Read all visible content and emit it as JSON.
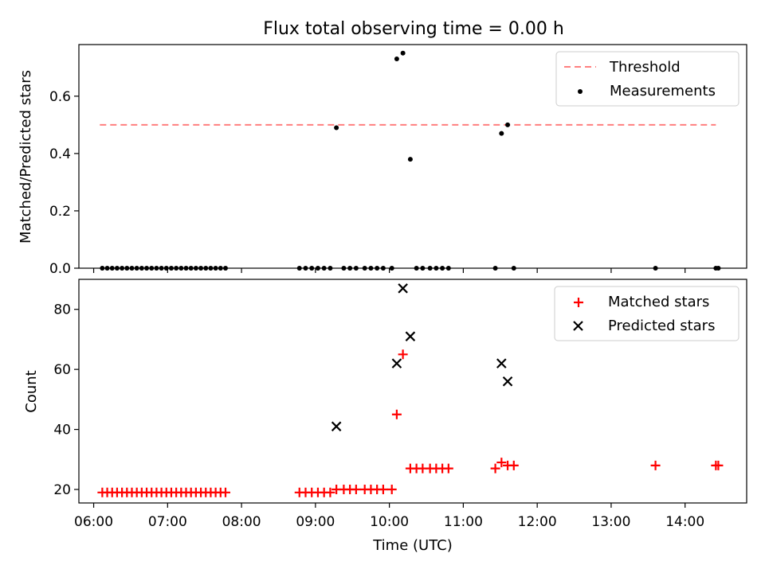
{
  "title": "Flux total observing time = 0.00 h",
  "chart_data": [
    {
      "type": "scatter",
      "panel": "top",
      "ylabel": "Matched/Predicted stars",
      "ylim": [
        0,
        0.78
      ],
      "yticks": [
        0.0,
        0.2,
        0.4,
        0.6
      ],
      "ytick_labels": [
        "0.0",
        "0.2",
        "0.4",
        "0.6"
      ],
      "threshold": {
        "name": "Threshold",
        "value": 0.5,
        "x_start": "06:05",
        "x_end": "14:25",
        "color": "#ff7f7f",
        "style": "dashed"
      },
      "series": [
        {
          "name": "Measurements",
          "color": "#000000",
          "marker": "dot",
          "x": [
            "06:07",
            "06:11",
            "06:15",
            "06:19",
            "06:23",
            "06:27",
            "06:31",
            "06:35",
            "06:39",
            "06:43",
            "06:47",
            "06:51",
            "06:55",
            "06:59",
            "07:03",
            "07:07",
            "07:11",
            "07:15",
            "07:19",
            "07:23",
            "07:27",
            "07:31",
            "07:35",
            "07:39",
            "07:43",
            "07:47",
            "08:47",
            "08:52",
            "08:57",
            "09:02",
            "09:07",
            "09:12",
            "09:17",
            "09:23",
            "09:28",
            "09:33",
            "09:40",
            "09:45",
            "09:50",
            "09:55",
            "10:02",
            "10:06",
            "10:11",
            "10:17",
            "10:22",
            "10:27",
            "10:33",
            "10:38",
            "10:43",
            "10:48",
            "11:26",
            "11:31",
            "11:36",
            "11:41",
            "13:36",
            "14:25",
            "14:27"
          ],
          "y": [
            0,
            0,
            0,
            0,
            0,
            0,
            0,
            0,
            0,
            0,
            0,
            0,
            0,
            0,
            0,
            0,
            0,
            0,
            0,
            0,
            0,
            0,
            0,
            0,
            0,
            0,
            0,
            0,
            0,
            0,
            0,
            0,
            0.49,
            0,
            0,
            0,
            0,
            0,
            0,
            0,
            0,
            0.73,
            0.75,
            0.38,
            0,
            0,
            0,
            0,
            0,
            0,
            0,
            0.47,
            0.5,
            0,
            0,
            0,
            0
          ]
        }
      ]
    },
    {
      "type": "scatter",
      "panel": "bottom",
      "xlabel": "Time (UTC)",
      "ylabel": "Count",
      "ylim": [
        15.5,
        90
      ],
      "yticks": [
        20,
        40,
        60,
        80
      ],
      "ytick_labels": [
        "20",
        "40",
        "60",
        "80"
      ],
      "xlim": [
        "05:48",
        "14:50"
      ],
      "xticks": [
        "06:00",
        "07:00",
        "08:00",
        "09:00",
        "10:00",
        "11:00",
        "12:00",
        "13:00",
        "14:00"
      ],
      "series": [
        {
          "name": "Matched stars",
          "color": "#ff0000",
          "marker": "plus",
          "x": [
            "06:07",
            "06:11",
            "06:15",
            "06:19",
            "06:23",
            "06:27",
            "06:31",
            "06:35",
            "06:39",
            "06:43",
            "06:47",
            "06:51",
            "06:55",
            "06:59",
            "07:03",
            "07:07",
            "07:11",
            "07:15",
            "07:19",
            "07:23",
            "07:27",
            "07:31",
            "07:35",
            "07:39",
            "07:43",
            "07:47",
            "08:47",
            "08:52",
            "08:57",
            "09:02",
            "09:07",
            "09:12",
            "09:17",
            "09:23",
            "09:28",
            "09:33",
            "09:40",
            "09:45",
            "09:50",
            "09:55",
            "10:02",
            "10:06",
            "10:11",
            "10:17",
            "10:22",
            "10:27",
            "10:33",
            "10:38",
            "10:43",
            "10:48",
            "11:26",
            "11:31",
            "11:36",
            "11:41",
            "13:36",
            "14:25",
            "14:27"
          ],
          "y": [
            19,
            19,
            19,
            19,
            19,
            19,
            19,
            19,
            19,
            19,
            19,
            19,
            19,
            19,
            19,
            19,
            19,
            19,
            19,
            19,
            19,
            19,
            19,
            19,
            19,
            19,
            19,
            19,
            19,
            19,
            19,
            19,
            20,
            20,
            20,
            20,
            20,
            20,
            20,
            20,
            20,
            45,
            65,
            27,
            27,
            27,
            27,
            27,
            27,
            27,
            27,
            29,
            28,
            28,
            28,
            28,
            28
          ]
        },
        {
          "name": "Predicted stars",
          "color": "#000000",
          "marker": "x",
          "x": [
            "09:17",
            "10:06",
            "10:11",
            "10:17",
            "11:31",
            "11:36"
          ],
          "y": [
            41,
            62,
            87,
            71,
            62,
            56
          ]
        }
      ]
    }
  ]
}
